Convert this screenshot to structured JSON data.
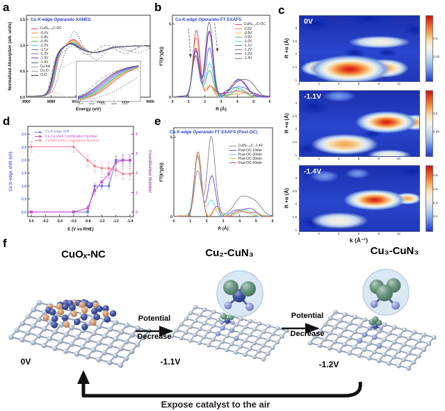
{
  "figure": {
    "background": "#ffffff",
    "panel_labels": [
      "a",
      "b",
      "c",
      "d",
      "e",
      "f"
    ]
  },
  "panel_f": {
    "structures": [
      {
        "label": "CuOₓ-NC",
        "voltage": "0V"
      },
      {
        "label": "Cu₂-CuN₃",
        "voltage": "-1.1V"
      },
      {
        "label": "Cu₃-CuN₃",
        "voltage": "-1.2V"
      }
    ],
    "arrow_label_top": "Potential",
    "arrow_label_bottom": "Decrease",
    "return_label": "Expose catalyst to the air",
    "atom_colors": {
      "carbon": "#9fb0c0",
      "copper": "#44549f",
      "oxygen": "#d8a078",
      "cluster_copper": "#6f9a85",
      "nitrogen": "#9aa2dc"
    }
  },
  "chart_data": [
    {
      "id": "xanes",
      "type": "line",
      "panel": "a",
      "title": "Cu K-edge Operando XANES",
      "title_parts": {
        "plain": "Cu",
        "italic1": "K-edge",
        "italic2": "Operando",
        "rest": "XANES"
      },
      "xlabel": "Energy (eV)",
      "ylabel": "Normalized Absorption (arb. units)",
      "xlim": [
        8960,
        9060
      ],
      "ylim": [
        0.0,
        1.5
      ],
      "xticks": [
        8960,
        8980,
        9000,
        9020,
        9040,
        9060
      ],
      "yticks": [
        0.0,
        0.5,
        1.0,
        1.5
      ],
      "inset": {
        "xticks": [
          8978,
          8980,
          8982,
          8984,
          8986
        ]
      },
      "series": [
        {
          "label": "Cu/N₀.₁₄C-OC",
          "color": "#e8417c",
          "edge_eV": 8982.4,
          "white_line": 1.12
        },
        {
          "label": "-0.6V",
          "color": "#f2923e",
          "edge_eV": 8982.1,
          "white_line": 1.1
        },
        {
          "label": "-0.8V",
          "color": "#e2cf63",
          "edge_eV": 8981.9,
          "white_line": 1.08
        },
        {
          "label": "-0.9V",
          "color": "#54c254",
          "edge_eV": 8981.7,
          "white_line": 1.06
        },
        {
          "label": "-1.0V",
          "color": "#64d4de",
          "edge_eV": 8981.5,
          "white_line": 1.05
        },
        {
          "label": "-1.1V",
          "color": "#5b76e0",
          "edge_eV": 8981.2,
          "white_line": 1.04
        },
        {
          "label": "-1.2V",
          "color": "#9b59d0",
          "edge_eV": 8980.9,
          "white_line": 1.04
        },
        {
          "label": "-1.3V",
          "color": "#7c2fc0",
          "edge_eV": 8980.6,
          "white_line": 1.04
        },
        {
          "label": "-1.4V",
          "color": "#5a5f66",
          "edge_eV": 8980.3,
          "white_line": 1.03
        },
        {
          "label": "Cu-foil",
          "color": "#9a9a9a",
          "dash": "4 2",
          "kind": "foil",
          "edge_eV": 8980.5
        },
        {
          "label": "Cu₂O",
          "color": "#8d8d8d",
          "dash": "2 2",
          "kind": "cu2o",
          "edge_eV": 8982.5
        },
        {
          "label": "CuO",
          "color": "#222222",
          "dash": "1 2.4",
          "kind": "cuo",
          "edge_eV": 8986.5
        }
      ]
    },
    {
      "id": "ft_operando",
      "type": "line",
      "panel": "b",
      "title": "Cu K-edge Operando FT EXAFS",
      "title_parts": {
        "plain": "Cu",
        "italic1": "K-edge",
        "italic2": "Operando",
        "rest": "FT EXAFS"
      },
      "xlabel": "R (Å)",
      "ylabel": "FT(k³χ(k))",
      "xlim": [
        0,
        6
      ],
      "ylim": [
        0,
        5.5
      ],
      "xticks": [
        0,
        1,
        2,
        3,
        4,
        5,
        6
      ],
      "yticks": [
        0,
        5
      ],
      "series": [
        {
          "label": "Cu/N₀.₁₄C-OC",
          "color": "#e8417c",
          "peaks": [
            [
              1.48,
              4.5,
              0.3
            ],
            [
              2.33,
              0.8,
              0.34
            ],
            [
              3.3,
              0.35,
              0.4
            ],
            [
              4.3,
              0.4,
              0.7
            ]
          ]
        },
        {
          "label": "-0.6V",
          "color": "#f2923e",
          "peaks": [
            [
              1.47,
              4.05,
              0.3
            ],
            [
              2.32,
              0.7,
              0.34
            ],
            [
              4.4,
              0.35,
              0.7
            ]
          ]
        },
        {
          "label": "-0.8V",
          "color": "#e2cf63",
          "peaks": [
            [
              1.46,
              3.35,
              0.3
            ],
            [
              2.3,
              0.8,
              0.34
            ],
            [
              4.2,
              0.4,
              0.7
            ]
          ]
        },
        {
          "label": "-0.9V",
          "color": "#54c254",
          "peaks": [
            [
              1.45,
              3.15,
              0.3
            ],
            [
              2.29,
              1.9,
              0.32
            ],
            [
              4.1,
              0.5,
              0.7
            ]
          ]
        },
        {
          "label": "-1.0V",
          "color": "#64d4de",
          "peaks": [
            [
              1.45,
              3.05,
              0.3
            ],
            [
              2.29,
              2.3,
              0.32
            ],
            [
              4.1,
              0.6,
              0.7
            ]
          ]
        },
        {
          "label": "-1.1V",
          "color": "#5b76e0",
          "peaks": [
            [
              1.44,
              2.85,
              0.3
            ],
            [
              2.28,
              3.3,
              0.32
            ],
            [
              4.1,
              0.8,
              0.7
            ]
          ]
        },
        {
          "label": "-1.2V",
          "color": "#9b59d0",
          "peaks": [
            [
              1.44,
              3.25,
              0.3
            ],
            [
              2.28,
              4.45,
              0.32
            ],
            [
              4.1,
              1.1,
              0.75
            ]
          ]
        },
        {
          "label": "-1.3V",
          "color": "#7c2fc0",
          "peaks": [
            [
              1.44,
              3.3,
              0.3
            ],
            [
              2.27,
              4.6,
              0.32
            ],
            [
              4.1,
              1.15,
              0.75
            ]
          ]
        },
        {
          "label": "-1.4V",
          "color": "#73777e",
          "peaks": [
            [
              1.43,
              2.75,
              0.3
            ],
            [
              2.26,
              5.1,
              0.33
            ],
            [
              4.35,
              1.3,
              0.9
            ]
          ]
        }
      ],
      "annotations": [
        {
          "x1": 1.0,
          "y1": 4.7,
          "x2": 1.12,
          "y2": 2.7
        },
        {
          "x1": 2.6,
          "y1": 5.05,
          "x2": 2.78,
          "y2": 3.1
        }
      ]
    },
    {
      "id": "wavelet",
      "type": "heatmap",
      "panel": "c",
      "xlabel": "k (Å⁻¹)",
      "ylabel": "R +α (Å)",
      "xticks": [
        0,
        2,
        4,
        6,
        8,
        10
      ],
      "yticks": [
        3,
        2.5,
        2,
        1.5,
        1
      ],
      "klim": [
        0,
        12
      ],
      "Rlim": [
        1,
        3.5
      ],
      "maps": [
        {
          "label": "0V",
          "colorbar_ticks": [
            [
              0.5,
              36
            ],
            [
              0.25,
              64
            ]
          ],
          "blobs": [
            [
              5.5,
              2.1,
              9,
              7,
              "dip"
            ],
            [
              8.8,
              2.1,
              8,
              6,
              "dip"
            ],
            [
              1.5,
              3.2,
              16,
              12,
              "dip"
            ],
            [
              7,
              3.4,
              20,
              10,
              "dip"
            ],
            [
              11.5,
              3.0,
              10,
              10,
              "dip"
            ],
            [
              8,
              2.5,
              26,
              10,
              "pale"
            ],
            [
              2,
              1.5,
              16,
              12,
              "warm"
            ],
            [
              8.5,
              1.5,
              20,
              14,
              "warm"
            ],
            [
              5,
              1.45,
              34,
              22,
              "hot"
            ]
          ],
          "hotspot": {
            "k": 5.0,
            "R": 1.45
          }
        },
        {
          "label": "-1.1V",
          "colorbar_ticks": [
            [
              0.5,
              36
            ],
            [
              0.25,
              64
            ]
          ],
          "blobs": [
            [
              7.3,
              1.85,
              8,
              6,
              "dip"
            ],
            [
              1.4,
              2.9,
              14,
              13,
              "dip"
            ],
            [
              0.7,
              1.3,
              9,
              8,
              "dip"
            ],
            [
              4,
              3.3,
              14,
              9,
              "mid"
            ],
            [
              9,
              1.05,
              18,
              8,
              "pale"
            ],
            [
              4.5,
              1.45,
              28,
              16,
              "warm"
            ],
            [
              11.6,
              2.3,
              12,
              12,
              "warm"
            ],
            [
              8.7,
              2.3,
              26,
              17,
              "hot"
            ]
          ],
          "hotspot": {
            "k": 8.7,
            "R": 2.3
          }
        },
        {
          "label": "-1.4V",
          "colorbar_ticks": [
            [
              0.8,
              16
            ],
            [
              0.6,
              37
            ],
            [
              0.4,
              58
            ],
            [
              0.2,
              79
            ]
          ],
          "blobs": [
            [
              1.2,
              1.35,
              11,
              10,
              "dip"
            ],
            [
              11.2,
              3.3,
              13,
              10,
              "dip"
            ],
            [
              2.5,
              3.1,
              12,
              9,
              "mid"
            ],
            [
              5.8,
              3.2,
              10,
              8,
              "mid"
            ],
            [
              4,
              1.4,
              24,
              13,
              "pale"
            ],
            [
              10.8,
              2.25,
              12,
              9,
              "warm"
            ],
            [
              7.5,
              2.2,
              26,
              16,
              "hot"
            ]
          ],
          "hotspot": {
            "k": 7.5,
            "R": 2.2
          }
        }
      ]
    },
    {
      "id": "shift_cn",
      "type": "scatter-line",
      "panel": "d",
      "xlabel": "E (V vs RHE)",
      "ylabel_left": "Cu K-edge shift (eV)",
      "ylabel_right": "Coordination Number",
      "xticks": [
        0.0,
        -0.2,
        -0.4,
        -0.6,
        -0.8,
        -1.0,
        -1.2,
        -1.4
      ],
      "yticks_left": [
        0.0,
        0.5,
        1.0,
        1.5,
        2.0,
        2.5,
        3.0
      ],
      "yticks_right": [
        0,
        1,
        2,
        3,
        4
      ],
      "x": [
        0.0,
        -0.6,
        -0.8,
        -0.9,
        -1.0,
        -1.1,
        -1.2,
        -1.3,
        -1.4
      ],
      "series": [
        {
          "label": "Cu K-edge shift",
          "color": "#7080e0",
          "marker": "circle",
          "axis": "left",
          "y": [
            0,
            0,
            0,
            1.0,
            1.0,
            1.0,
            2.0,
            2.0,
            2.0
          ],
          "err": [
            0.05,
            0.05,
            0.05,
            0.12,
            0.12,
            0.12,
            0.15,
            0.15,
            0.15
          ]
        },
        {
          "label": "Cu-Cu  shell Coordination Number",
          "color": "#c94fc9",
          "marker": "square",
          "axis": "right",
          "y": [
            0,
            0,
            0.2,
            1.1,
            1.55,
            1.95,
            2.55,
            2.65,
            2.65
          ],
          "err": [
            0.05,
            0.05,
            0.12,
            0.22,
            0.22,
            0.25,
            0.3,
            0.3,
            0.3
          ]
        },
        {
          "label": "Cu-N/O shell Coordination Number",
          "color": "#f08090",
          "marker": "diamond",
          "axis": "right",
          "y": [
            3.35,
            3.35,
            2.65,
            2.35,
            2.25,
            2.25,
            2.15,
            1.95,
            1.95
          ],
          "err": [
            0.28,
            0.28,
            0.3,
            0.3,
            0.3,
            0.3,
            0.3,
            0.28,
            0.28
          ]
        }
      ]
    },
    {
      "id": "ft_post",
      "type": "line",
      "panel": "e",
      "title": "Cu K-edge Operando FT EXAFS (Post-OC)",
      "title_parts": {
        "plain": "Cu",
        "italic1": "K-edge",
        "italic2": "Operando",
        "rest": "FT EXAFS (Post-OC)"
      },
      "xlabel": "R (Å)",
      "ylabel": "FT(k³χ(k))",
      "xlim": [
        0,
        6
      ],
      "ylim": [
        0,
        5.5
      ],
      "xticks": [
        0,
        1,
        2,
        3,
        4,
        5,
        6
      ],
      "yticks": [
        0,
        5
      ],
      "series": [
        {
          "label": "Cu/N₀.₁₄C -1.4V",
          "color": "#8a8f98",
          "peaks": [
            [
              1.45,
              2.8,
              0.3
            ],
            [
              2.27,
              5.1,
              0.33
            ],
            [
              4.4,
              1.35,
              0.95
            ]
          ]
        },
        {
          "label": "Post-OC-10min",
          "color": "#7a4fd0",
          "peaks": [
            [
              1.45,
              3.75,
              0.3
            ],
            [
              2.3,
              2.5,
              0.33
            ],
            [
              4.3,
              0.55,
              0.8
            ]
          ]
        },
        {
          "label": "Post-OC-20min",
          "color": "#66d8e8",
          "peaks": [
            [
              1.45,
              3.9,
              0.3
            ],
            [
              2.3,
              1.0,
              0.33
            ],
            [
              4.2,
              0.35,
              0.8
            ]
          ]
        },
        {
          "label": "Post-OC-30min",
          "color": "#d9cc55",
          "peaks": [
            [
              1.46,
              3.85,
              0.3
            ],
            [
              2.6,
              0.5,
              0.3
            ],
            [
              4.2,
              0.3,
              0.8
            ]
          ]
        },
        {
          "label": "Post-OC-60min",
          "color": "#c06055",
          "peaks": [
            [
              1.47,
              4.0,
              0.3
            ],
            [
              2.6,
              0.55,
              0.3
            ],
            [
              4.3,
              0.35,
              0.8
            ]
          ]
        }
      ]
    }
  ]
}
